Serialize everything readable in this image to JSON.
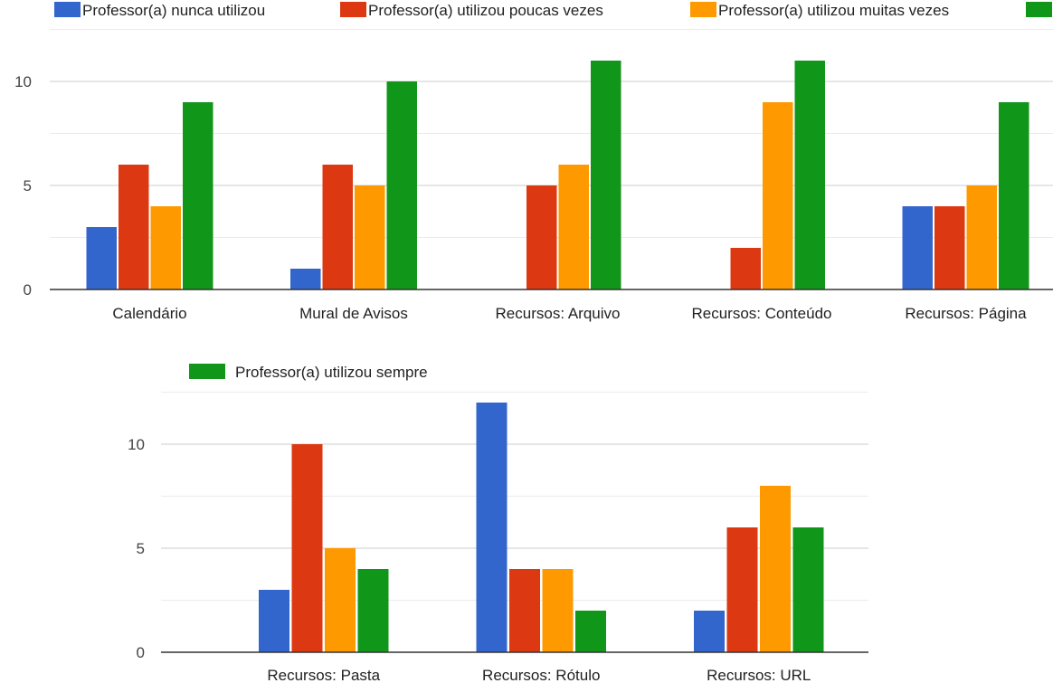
{
  "chart_data": [
    {
      "type": "bar",
      "categories": [
        "Calendário",
        "Mural de Avisos",
        "Recursos: Arquivo",
        "Recursos: Conteúdo",
        "Recursos: Página"
      ],
      "series": [
        {
          "name": "Professor(a) nunca utilizou",
          "color": "#3366cc",
          "values": [
            3,
            1,
            0,
            0,
            4
          ]
        },
        {
          "name": "Professor(a) utilizou poucas vezes",
          "color": "#dc3912",
          "values": [
            6,
            6,
            5,
            2,
            4
          ]
        },
        {
          "name": "Professor(a) utilizou muitas vezes",
          "color": "#ff9900",
          "values": [
            4,
            5,
            6,
            9,
            5
          ]
        },
        {
          "name": "Professor(a) utilizou sempre",
          "color": "#109618",
          "values": [
            9,
            10,
            11,
            11,
            9
          ]
        }
      ],
      "yticks": [
        0,
        5,
        10
      ],
      "ylim": [
        0,
        12.5
      ],
      "grid": true,
      "legend": "top"
    },
    {
      "type": "bar",
      "categories": [
        "Recursos: Pasta",
        "Recursos: Rótulo",
        "Recursos: URL"
      ],
      "series": [
        {
          "name": "Professor(a) nunca utilizou",
          "color": "#3366cc",
          "values": [
            3,
            12,
            2
          ]
        },
        {
          "name": "Professor(a) utilizou poucas vezes",
          "color": "#dc3912",
          "values": [
            10,
            4,
            6
          ]
        },
        {
          "name": "Professor(a) utilizou muitas vezes",
          "color": "#ff9900",
          "values": [
            5,
            4,
            8
          ]
        },
        {
          "name": "Professor(a) utilizou sempre",
          "color": "#109618",
          "values": [
            4,
            2,
            6
          ]
        }
      ],
      "legend_shown": [
        "Professor(a) utilizou sempre"
      ],
      "yticks": [
        0,
        5,
        10
      ],
      "ylim": [
        0,
        12.5
      ],
      "grid": true,
      "legend": "top"
    }
  ]
}
